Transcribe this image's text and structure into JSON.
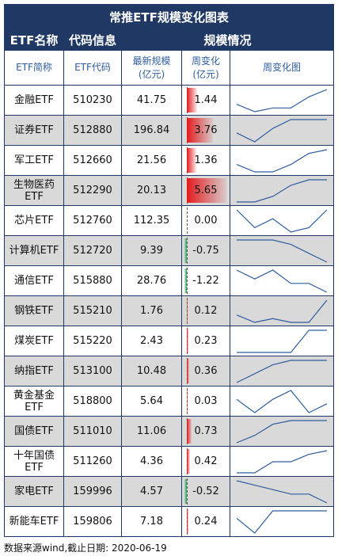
{
  "title": "常推ETF规模变化图表",
  "groups": [
    "ETF名称",
    "代码信息",
    "规模情况"
  ],
  "columns": [
    "ETF简称",
    "ETF代码",
    "最新规模\n(亿元)",
    "周变化\n(亿元)",
    "周变化图"
  ],
  "footer": "数据来源wind,截止日期: 2020-06-19",
  "colors": {
    "header": "#1f3864",
    "positive": "#e31a1c",
    "negative": "#2ca25f",
    "spark": "#2e5d9f",
    "stripe": "#d9d9d9"
  },
  "chart_data": {
    "type": "table",
    "rows": [
      {
        "name": "金融ETF",
        "code": "510230",
        "scale": "41.75",
        "change": 1.44,
        "change_label": "1.44",
        "trend": [
          3,
          1,
          2,
          2,
          5,
          7
        ]
      },
      {
        "name": "证券ETF",
        "code": "512880",
        "scale": "196.84",
        "change": 3.76,
        "change_label": "3.76",
        "trend": [
          3,
          1,
          4,
          6,
          6,
          6
        ]
      },
      {
        "name": "军工ETF",
        "code": "512660",
        "scale": "21.56",
        "change": 1.36,
        "change_label": "1.36",
        "trend": [
          3,
          1,
          1,
          3,
          6,
          7
        ]
      },
      {
        "name": "生物医药ETF",
        "code": "512290",
        "scale": "20.13",
        "change": 5.65,
        "change_label": "5.65",
        "trend": [
          1,
          1,
          2,
          4,
          5,
          5
        ]
      },
      {
        "name": "芯片ETF",
        "code": "512760",
        "scale": "112.35",
        "change": 0.0,
        "change_label": "0.00",
        "trend": [
          7,
          3,
          5,
          2,
          3,
          7
        ]
      },
      {
        "name": "计算机ETF",
        "code": "512720",
        "scale": "9.39",
        "change": -0.75,
        "change_label": "-0.75",
        "trend": [
          6,
          6,
          6,
          5,
          3,
          1
        ]
      },
      {
        "name": "通信ETF",
        "code": "515880",
        "scale": "28.76",
        "change": -1.22,
        "change_label": "-1.22",
        "trend": [
          6,
          4,
          6,
          3,
          3,
          1
        ]
      },
      {
        "name": "钢铁ETF",
        "code": "515210",
        "scale": "1.76",
        "change": 0.12,
        "change_label": "0.12",
        "trend": [
          3,
          1,
          2,
          1,
          1,
          7
        ]
      },
      {
        "name": "煤炭ETF",
        "code": "515220",
        "scale": "2.43",
        "change": 0.23,
        "change_label": "0.23",
        "trend": [
          1,
          1,
          1,
          1,
          7,
          7
        ]
      },
      {
        "name": "纳指ETF",
        "code": "513100",
        "scale": "10.48",
        "change": 0.36,
        "change_label": "0.36",
        "trend": [
          1,
          3,
          5,
          6,
          6,
          6
        ]
      },
      {
        "name": "黄金基金ETF",
        "code": "518800",
        "scale": "5.64",
        "change": 0.03,
        "change_label": "0.03",
        "trend": [
          4,
          1,
          4,
          6,
          1,
          3
        ]
      },
      {
        "name": "国债ETF",
        "code": "511010",
        "scale": "11.06",
        "change": 0.73,
        "change_label": "0.73",
        "trend": [
          1,
          3,
          6,
          7,
          7,
          7
        ]
      },
      {
        "name": "十年国债ETF",
        "code": "511260",
        "scale": "4.36",
        "change": 0.42,
        "change_label": "0.42",
        "trend": [
          1,
          1,
          4,
          4,
          6,
          7
        ]
      },
      {
        "name": "家电ETF",
        "code": "159996",
        "scale": "4.57",
        "change": -0.52,
        "change_label": "-0.52",
        "trend": [
          6,
          5,
          4,
          3,
          3,
          1
        ]
      },
      {
        "name": "新能车ETF",
        "code": "159806",
        "scale": "7.18",
        "change": 0.24,
        "change_label": "0.24",
        "trend": [
          5,
          1,
          7,
          7,
          7,
          7
        ]
      }
    ]
  }
}
